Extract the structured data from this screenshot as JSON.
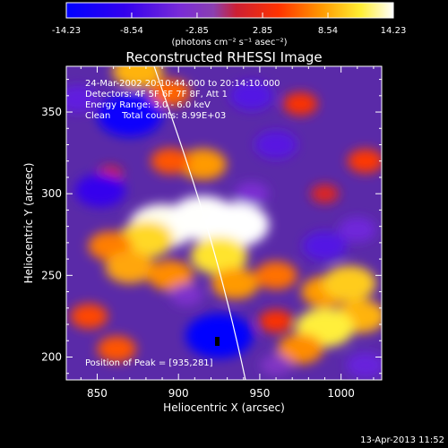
{
  "colorbar": {
    "ticks": [
      "-14.23",
      "-8.54",
      "-2.85",
      "2.85",
      "8.54",
      "14.23"
    ],
    "range": [
      -14.23,
      14.23
    ],
    "unit_label": "(photons cm⁻² s⁻¹ asec⁻²)"
  },
  "chart_data": {
    "type": "heatmap",
    "title": "Reconstructed RHESSI Image",
    "xlabel": "Heliocentric X (arcsec)",
    "ylabel": "Heliocentric Y (arcsec)",
    "xlim": [
      831,
      1025
    ],
    "ylim": [
      186,
      378
    ],
    "xticks": [
      850,
      900,
      950,
      1000
    ],
    "yticks": [
      200,
      250,
      300,
      350
    ],
    "colormap": "blue-purple-red-yellow-white",
    "info_lines": [
      "24-Mar-2002 20:10:44.000 to 20:14:10.000",
      "Detectors: 4F 5F 6F 7F 8F, Att 1",
      "Energy Range: 3.0 - 6.0 keV",
      "Clean    Total counts: 8.99E+03"
    ],
    "peak_label": "Position of Peak = [935,281]",
    "peak_position": [
      935,
      281
    ],
    "blobs": [
      {
        "x": 890,
        "y": 280,
        "value": 14.0
      },
      {
        "x": 915,
        "y": 285,
        "value": 14.2
      },
      {
        "x": 935,
        "y": 281,
        "value": 14.23
      },
      {
        "x": 880,
        "y": 272,
        "value": 10.5
      },
      {
        "x": 858,
        "y": 268,
        "value": 7.0
      },
      {
        "x": 925,
        "y": 262,
        "value": 11.0
      },
      {
        "x": 870,
        "y": 255,
        "value": 8.5
      },
      {
        "x": 895,
        "y": 250,
        "value": 7.5
      },
      {
        "x": 935,
        "y": 245,
        "value": 8.0
      },
      {
        "x": 960,
        "y": 250,
        "value": 6.5
      },
      {
        "x": 990,
        "y": 240,
        "value": 8.0
      },
      {
        "x": 1005,
        "y": 245,
        "value": 10.0
      },
      {
        "x": 1012,
        "y": 225,
        "value": 9.0
      },
      {
        "x": 990,
        "y": 218,
        "value": 11.5
      },
      {
        "x": 975,
        "y": 205,
        "value": 7.5
      },
      {
        "x": 960,
        "y": 222,
        "value": 4.0
      },
      {
        "x": 845,
        "y": 225,
        "value": 5.0
      },
      {
        "x": 862,
        "y": 205,
        "value": 5.5
      },
      {
        "x": 875,
        "y": 375,
        "value": 9.0
      },
      {
        "x": 895,
        "y": 362,
        "value": 6.0
      },
      {
        "x": 915,
        "y": 318,
        "value": 8.0
      },
      {
        "x": 895,
        "y": 320,
        "value": 5.5
      },
      {
        "x": 975,
        "y": 355,
        "value": 4.0
      },
      {
        "x": 1015,
        "y": 320,
        "value": 4.5
      },
      {
        "x": 990,
        "y": 300,
        "value": 2.0
      },
      {
        "x": 858,
        "y": 312,
        "value": 1.0
      },
      {
        "x": 870,
        "y": 348,
        "value": -13.5
      },
      {
        "x": 838,
        "y": 358,
        "value": -6.0
      },
      {
        "x": 852,
        "y": 302,
        "value": -9.0
      },
      {
        "x": 925,
        "y": 213,
        "value": -14.23
      },
      {
        "x": 945,
        "y": 360,
        "value": -7.0
      },
      {
        "x": 1010,
        "y": 278,
        "value": -5.0
      },
      {
        "x": 990,
        "y": 268,
        "value": -7.0
      },
      {
        "x": 1015,
        "y": 195,
        "value": -5.5
      },
      {
        "x": 960,
        "y": 330,
        "value": -6.5
      },
      {
        "x": 905,
        "y": 238,
        "value": -3.5
      },
      {
        "x": 945,
        "y": 300,
        "value": -4.0
      },
      {
        "x": 960,
        "y": 195,
        "value": -3.0
      }
    ]
  },
  "footer": {
    "timestamp": "13-Apr-2013 11:52"
  }
}
